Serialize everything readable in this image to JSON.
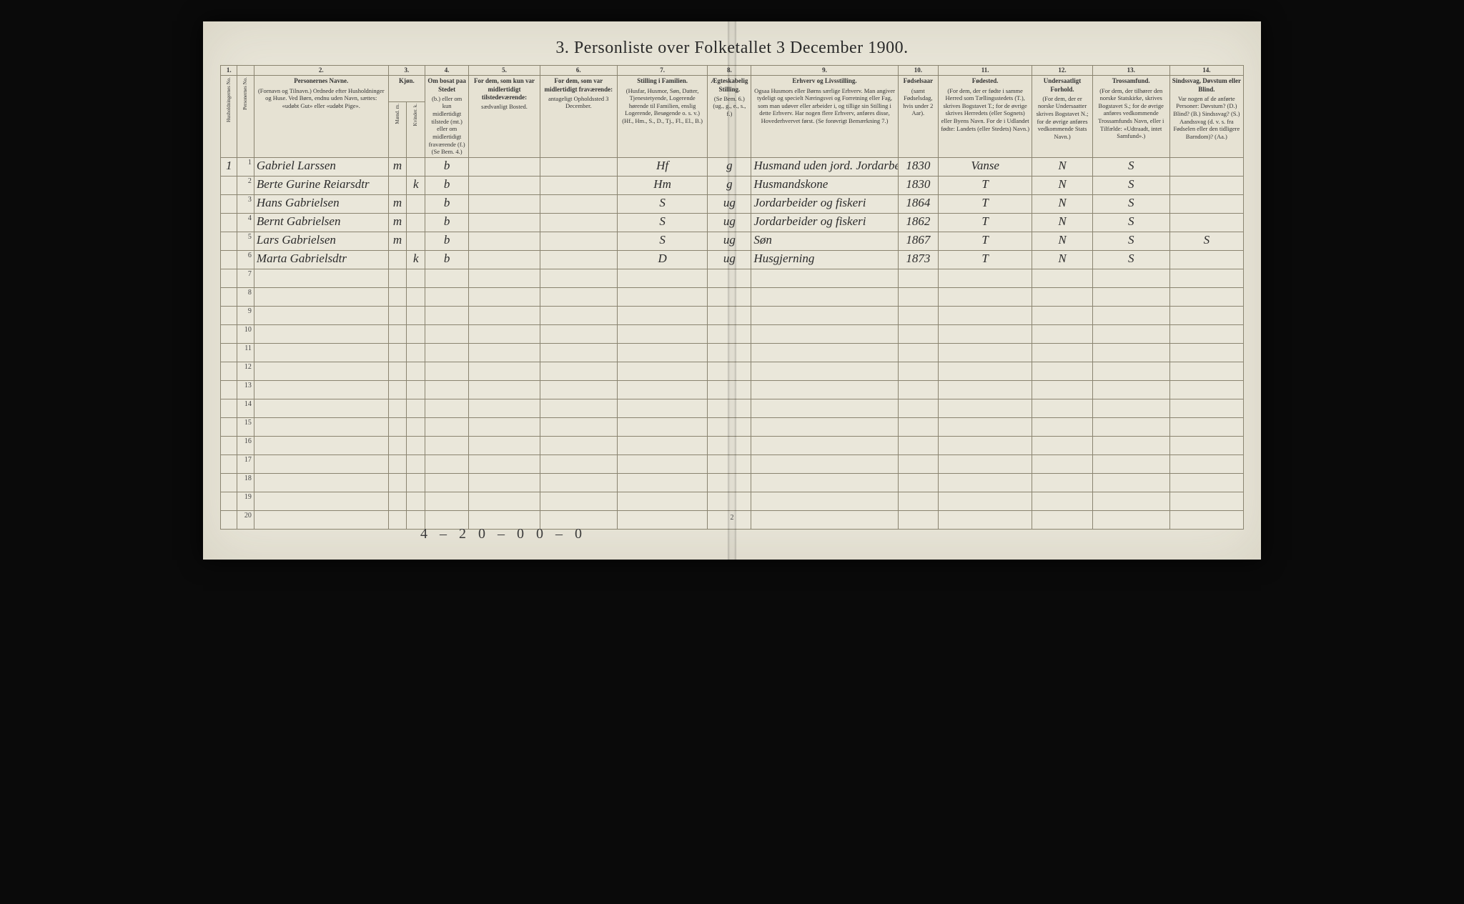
{
  "title": "3.  Personliste over Folketallet 3 December 1900.",
  "pagenum": "2",
  "footnote": "4 – 2  0 – 0    0 – 0",
  "colnums": [
    "1.",
    "",
    "2.",
    "3.",
    "",
    "4.",
    "5.",
    "6.",
    "7.",
    "8.",
    "9.",
    "10.",
    "11.",
    "12.",
    "13.",
    "14."
  ],
  "headers": {
    "c1": "Husholdningernes No.",
    "c2": "Personernes No.",
    "c3_title": "Personernes Navne.",
    "c3_body": "(Fornavn og Tilnavn.)\nOrdnede efter Husholdninger og Huse.\nVed Børn, endnu uden Navn, sættes: «udøbt Gut» eller «udøbt Pige».",
    "c4_title": "Kjøn.",
    "c4a": "Mænd. m.",
    "c4b": "Kvinder. k.",
    "c5_title": "Om bosat paa Stedet",
    "c5_body": "(b.) eller om kun midlertidigt tilstede (mt.) eller om midlertidigt fraværende (f.)\n(Se Bem. 4.)",
    "c6_title": "For dem, som kun var midlertidigt tilstedeværende:",
    "c6_body": "sædvanligt Bosted.",
    "c7_title": "For dem, som var midlertidigt fraværende:",
    "c7_body": "antageligt Opholdssted 3 December.",
    "c8_title": "Stilling i Familien.",
    "c8_body": "(Husfar, Husmor, Søn, Datter, Tjenestetyende, Logerende hørende til Familien, enslig Logerende, Besøgende o. s. v.)\n(Hf., Hm., S., D., Tj., Fl., El., B.)",
    "c9_title": "Ægteskabelig Stilling.",
    "c9_body": "(Se Bem. 6.)\n(ug., g., e., s., f.)",
    "c10_title": "Erhverv og Livsstilling.",
    "c10_body": "Ogsaa Husmors eller Børns særlige Erhverv. Man angiver tydeligt og specielt Næringsvei og Forretning eller Fag, som man udøver eller arbeider i, og tillige sin Stilling i dette Erhverv. Har nogen flere Erhverv, anføres disse, Hovederhvervet først.\n(Se forøvrigt Bemærkning 7.)",
    "c11_title": "Fødselsaar",
    "c11_body": "(samt Fødselsdag, hvis under 2 Aar).",
    "c12_title": "Fødested.",
    "c12_body": "(For dem, der er fødte i samme Herred som Tællingsstedets (T.), skrives Bogstavet T.; for de øvrige skrives Herredets (eller Sognets) eller Byens Navn. For de i Udlandet fødte: Landets (eller Stedets) Navn.)",
    "c13_title": "Undersaatligt Forhold.",
    "c13_body": "(For dem, der er norske Undersaatter skrives Bogstavet N.; for de øvrige anføres vedkommende Stats Navn.)",
    "c14_title": "Trossamfund.",
    "c14_body": "(For dem, der tilhører den norske Statskirke, skrives Bogstavet S.; for de øvrige anføres vedkommende Trossamfunds Navn, eller i Tilfælde: «Udtraadt, intet Samfund».)",
    "c15_title": "Sindssvag, Døvstum eller Blind.",
    "c15_body": "Var nogen af de anførte Personer:\nDøvstum? (D.)\nBlind? (B.)\nSindssvag? (S.)\nAandssvag (d. v. s. fra Fødselen eller den tidligere Barndom)? (Aa.)"
  },
  "rows": [
    {
      "hh": "1",
      "no": "1",
      "name": "Gabriel Larssen",
      "sex_m": "m",
      "sex_k": "",
      "res": "b",
      "temp": "",
      "abs": "",
      "fam": "Hf",
      "mar": "g",
      "occ": "Husmand uden jord. Jordarbeider",
      "year": "1830",
      "birthplace": "Vanse",
      "nat": "N",
      "rel": "S",
      "dis": ""
    },
    {
      "hh": "",
      "no": "2",
      "name": "Berte Gurine Reiarsdtr",
      "sex_m": "",
      "sex_k": "k",
      "res": "b",
      "temp": "",
      "abs": "",
      "fam": "Hm",
      "mar": "g",
      "occ": "Husmandskone",
      "year": "1830",
      "birthplace": "T",
      "nat": "N",
      "rel": "S",
      "dis": ""
    },
    {
      "hh": "",
      "no": "3",
      "name": "Hans Gabrielsen",
      "sex_m": "m",
      "sex_k": "",
      "res": "b",
      "temp": "",
      "abs": "",
      "fam": "S",
      "mar": "ug",
      "occ": "Jordarbeider og fiskeri",
      "year": "1864",
      "birthplace": "T",
      "nat": "N",
      "rel": "S",
      "dis": ""
    },
    {
      "hh": "",
      "no": "4",
      "name": "Bernt Gabrielsen",
      "sex_m": "m",
      "sex_k": "",
      "res": "b",
      "temp": "",
      "abs": "",
      "fam": "S",
      "mar": "ug",
      "occ": "Jordarbeider og fiskeri",
      "year": "1862",
      "birthplace": "T",
      "nat": "N",
      "rel": "S",
      "dis": ""
    },
    {
      "hh": "",
      "no": "5",
      "name": "Lars Gabrielsen",
      "sex_m": "m",
      "sex_k": "",
      "res": "b",
      "temp": "",
      "abs": "",
      "fam": "S",
      "mar": "ug",
      "occ": "Søn",
      "year": "1867",
      "birthplace": "T",
      "nat": "N",
      "rel": "S",
      "dis": "S"
    },
    {
      "hh": "",
      "no": "6",
      "name": "Marta Gabrielsdtr",
      "sex_m": "",
      "sex_k": "k",
      "res": "b",
      "temp": "",
      "abs": "",
      "fam": "D",
      "mar": "ug",
      "occ": "Husgjerning",
      "year": "1873",
      "birthplace": "T",
      "nat": "N",
      "rel": "S",
      "dis": ""
    }
  ],
  "blank_rows": 14,
  "table_style": {
    "border_color": "#8a8470",
    "page_bg": "#e8e5d8",
    "header_bg": "#e6e2d3",
    "hand_color": "#2b2b2b"
  }
}
